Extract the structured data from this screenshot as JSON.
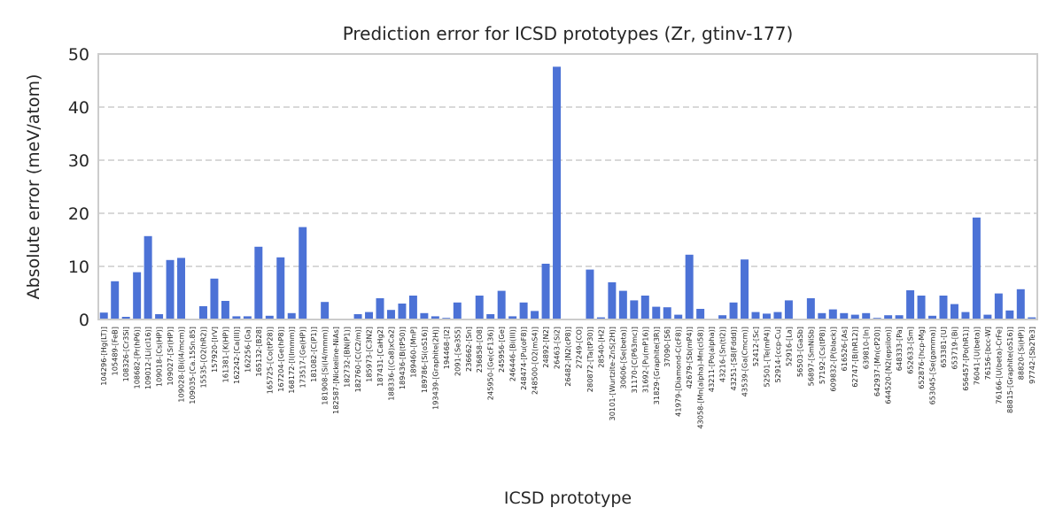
{
  "chart_data": {
    "type": "bar",
    "title": "Prediction error for ICSD prototypes (Zr, gtinv-177)",
    "xlabel": "ICSD prototype",
    "ylabel": "Absolute error (meV/atom)",
    "ylim": [
      0,
      50
    ],
    "yticks": [
      0,
      10,
      20,
      30,
      40,
      50
    ],
    "grid": "y-dashed",
    "bar_color": "#4c72d6",
    "categories": [
      "104296-[Hg(LT)]",
      "105489-[FeB]",
      "108326-[Cr3Si]",
      "108682-[Pr(hP6)]",
      "109012-[Li(cI16)]",
      "109018-[Cs(HP)]",
      "109027-[Sr(HP)]",
      "109028-[Bi(I4/mcm)]",
      "109035-[Ca.15Sn.85]",
      "15535-[O2(hR2)]",
      "157920-[IrV]",
      "161381-[K(HP)]",
      "162242-[Ca(III)]",
      "162256-[Ga]",
      "165132-[B28]",
      "165725-[Co(tP28)]",
      "167204-[Ge(hP8)]",
      "168172-[I(Immm)]",
      "173517-[Ge(HP)]",
      "181082-[C(P1)]",
      "181908-[Si(I4/mmm)]",
      "182587-[Nickeline-NiAs]",
      "182732-[BN(P1)]",
      "182760-[C(C2/m)]",
      "185973-[C3N2]",
      "187431-[CaHg2]",
      "188336-[(Ca8)xCa2]",
      "189436-[B(tP50)]",
      "189460-[MnP]",
      "189786-[Si(oS16)]",
      "193439-[Graphite(2H)]",
      "194468-[I2]",
      "2091-[Se3S5]",
      "236662-[Sn]",
      "236858-[O8]",
      "245950-[Ge(cF136)]",
      "245956-[Ge]",
      "246446-[Bi(III)]",
      "248474-[Pu(oF8)]",
      "248500-[O2(mS4)]",
      "24892-[N2]",
      "26463-[Si2]",
      "26482-[N2(cP8)]",
      "27249-[CO]",
      "280872-[Ta(tP30)]",
      "28540-[H2]",
      "30101-[Wurtzite-ZnS(2H)]",
      "30606-[Se(beta)]",
      "31170-[C(P63mc)]",
      "31692-[Pu(mP16)]",
      "31829-[Graphite(3R)]",
      "37090-[S6]",
      "41979-[Diamond-C(cF8)]",
      "42679-[Sb(mP4)]",
      "43058-[Mn(alpha)-Mn(cI58)]",
      "43211-[Po(alpha)]",
      "43216-[Sn(tI2)]",
      "43251-[S8(Fddd)]",
      "43539-[Ga(Cmcm)]",
      "52412-[Sc]",
      "52501-[Te(mP4)]",
      "52914-[ccp-Cu]",
      "52916-[La]",
      "56503-[GaSb]",
      "56897-[SmNiSb]",
      "57192-[Cs(tP8)]",
      "609832-[P(black)]",
      "616526-[As]",
      "62747-[B(hR12)]",
      "639810-[In]",
      "642937-[Mn(cP20)]",
      "644520-[N2(epsilon)]",
      "648333-[Pa]",
      "652633-[Sm]",
      "652876-[hcp-Mg]",
      "653045-[Se(gamma)]",
      "653381-[U]",
      "653719-[Bi]",
      "656457-[Po(hR1)]",
      "76041-[U(beta)]",
      "76156-[bcc-W]",
      "76166-[U(beta)-CrFe]",
      "88815-[Graphite(oS16)]",
      "88820-[Si(HP)]",
      "97742-[Sb2Te3]"
    ],
    "values": [
      1.3,
      7.2,
      0.5,
      8.9,
      15.7,
      1.0,
      11.2,
      11.6,
      0.1,
      2.5,
      7.7,
      3.5,
      0.6,
      0.6,
      13.7,
      0.7,
      11.7,
      1.2,
      17.4,
      0.1,
      3.3,
      0.1,
      0.1,
      1.0,
      1.4,
      4.0,
      1.8,
      3.0,
      4.5,
      1.2,
      0.6,
      0.3,
      3.2,
      0.1,
      4.5,
      1.0,
      5.4,
      0.6,
      3.2,
      1.6,
      10.5,
      47.6,
      0.1,
      0.1,
      9.4,
      0.4,
      7.0,
      5.4,
      3.6,
      4.5,
      2.4,
      2.3,
      0.9,
      12.2,
      2.0,
      0.1,
      0.8,
      3.2,
      11.3,
      1.4,
      1.1,
      1.4,
      3.6,
      0.1,
      4.0,
      1.2,
      1.9,
      1.2,
      0.9,
      1.2,
      0.3,
      0.8,
      0.8,
      5.5,
      4.5,
      0.7,
      4.5,
      2.9,
      1.4,
      19.2,
      0.9,
      4.9,
      1.7,
      5.7,
      0.4
    ]
  }
}
